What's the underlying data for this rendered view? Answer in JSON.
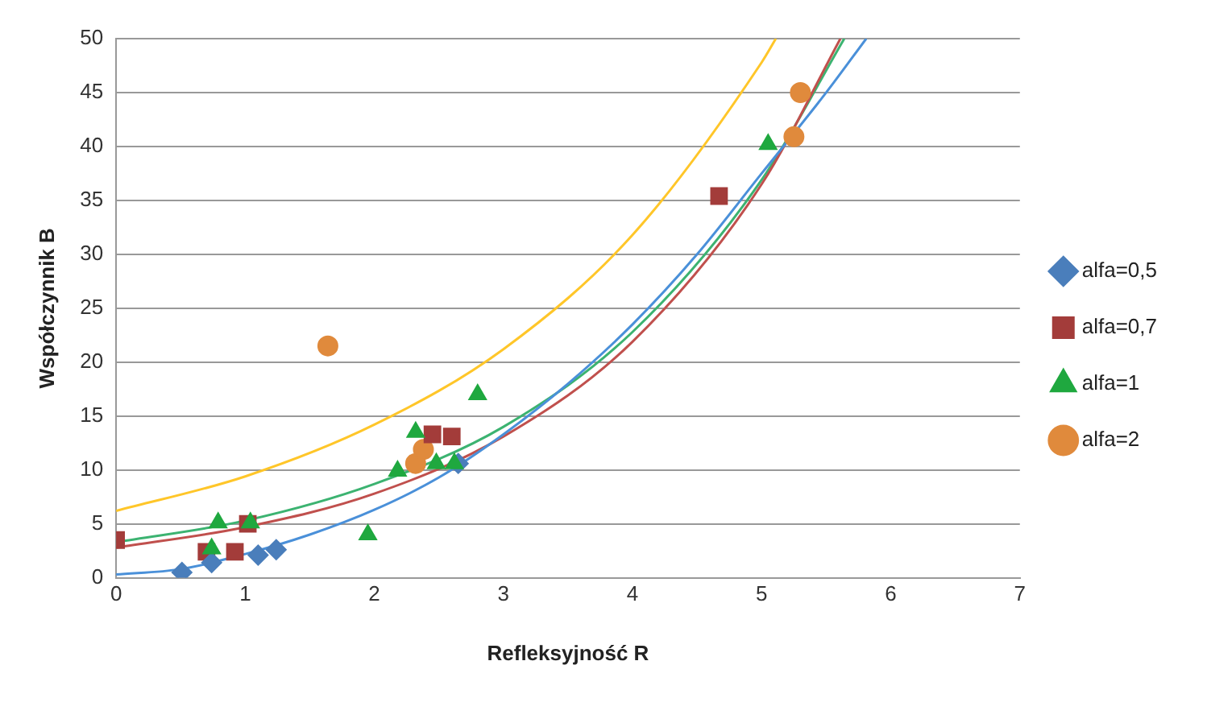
{
  "chart_data": {
    "type": "scatter",
    "xlabel": "Refleksyjność R",
    "ylabel": "Współczynnik B",
    "xlim": [
      0,
      7
    ],
    "xticks": [
      0,
      1,
      2,
      3,
      4,
      5,
      6,
      7
    ],
    "ylim": [
      0,
      50
    ],
    "yticks": [
      0,
      5,
      10,
      15,
      20,
      25,
      30,
      35,
      40,
      45,
      50
    ],
    "grid": "y",
    "legend": "right",
    "series": [
      {
        "name": "alfa=0,5",
        "color": "#4a7ebb",
        "marker": "diamond",
        "x": [
          0.51,
          0.74,
          1.1,
          1.24,
          2.65
        ],
        "values": [
          0.5,
          1.4,
          2.1,
          2.6,
          10.6
        ]
      },
      {
        "name": "alfa=0,7",
        "color": "#a33c3a",
        "marker": "square",
        "x": [
          0,
          0.7,
          0.92,
          1.02,
          2.45,
          2.6,
          4.67
        ],
        "values": [
          3.5,
          2.4,
          2.4,
          5,
          13.3,
          13.1,
          35.4
        ]
      },
      {
        "name": "alfa=1",
        "color": "#1fa83f",
        "marker": "triangle",
        "x": [
          0.74,
          0.79,
          1.04,
          1.95,
          2.18,
          2.32,
          2.48,
          2.62,
          2.8,
          5.05
        ],
        "values": [
          2.7,
          5.1,
          5.1,
          4,
          9.9,
          13.5,
          10.6,
          10.6,
          17,
          40.2
        ]
      },
      {
        "name": "alfa=2",
        "color": "#e08a3c",
        "marker": "circle",
        "x": [
          1.64,
          2.32,
          2.38,
          5.25,
          5.3
        ],
        "values": [
          21.5,
          10.6,
          11.9,
          40.9,
          45
        ]
      },
      {
        "type": "line",
        "color": "#4a90d9",
        "marker": "none",
        "x": [
          0,
          0.5,
          1,
          1.5,
          2,
          2.5,
          3,
          3.5,
          4,
          4.5,
          5,
          5.5,
          5.81
        ],
        "values": [
          0.3,
          0.8,
          2.2,
          4,
          6.3,
          9.3,
          13.3,
          18,
          23.5,
          30,
          37.5,
          45,
          50
        ]
      },
      {
        "type": "line",
        "color": "#c0504d",
        "marker": "none",
        "x": [
          0,
          1,
          2,
          3,
          4,
          5,
          5.61
        ],
        "values": [
          2.8,
          4.7,
          7.8,
          13.1,
          21.9,
          36.5,
          50
        ]
      },
      {
        "type": "line",
        "color": "#3cb371",
        "marker": "none",
        "x": [
          0,
          1,
          2,
          3,
          4,
          5,
          5.64
        ],
        "values": [
          3.3,
          5.3,
          8.7,
          14,
          22.8,
          36.9,
          50
        ]
      },
      {
        "type": "line",
        "color": "#ffc629",
        "marker": "none",
        "x": [
          0,
          1,
          2,
          3,
          4,
          5,
          5.11
        ],
        "values": [
          6.2,
          9.4,
          14.2,
          21.2,
          31.8,
          47.8,
          50
        ]
      }
    ]
  }
}
